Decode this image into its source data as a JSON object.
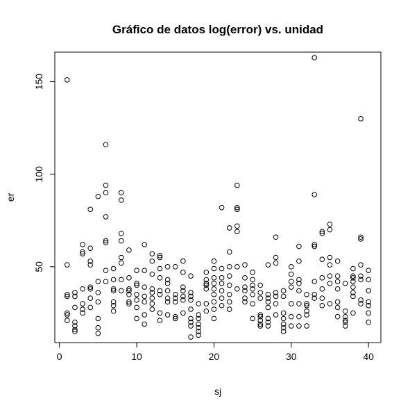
{
  "chart_data": {
    "type": "scatter",
    "title": "Gráfico de datos log(error) vs. unidad",
    "xlabel": "sj",
    "ylabel": "er",
    "xlim": [
      -0.6,
      41.6
    ],
    "ylim": [
      9,
      166
    ],
    "xticks": [
      0,
      10,
      20,
      30,
      40
    ],
    "yticks": [
      50,
      100,
      150
    ],
    "grid": false,
    "marker": "open-circle",
    "points": [
      [
        1,
        151
      ],
      [
        1,
        51
      ],
      [
        1,
        35
      ],
      [
        1,
        34
      ],
      [
        1,
        25
      ],
      [
        1,
        24
      ],
      [
        1,
        21
      ],
      [
        2,
        36
      ],
      [
        2,
        34
      ],
      [
        2,
        28
      ],
      [
        2,
        20
      ],
      [
        2,
        18
      ],
      [
        2,
        16
      ],
      [
        2,
        15
      ],
      [
        3,
        62
      ],
      [
        3,
        58
      ],
      [
        3,
        57
      ],
      [
        3,
        38
      ],
      [
        3,
        30
      ],
      [
        3,
        27
      ],
      [
        3,
        25
      ],
      [
        4,
        81
      ],
      [
        4,
        60
      ],
      [
        4,
        53
      ],
      [
        4,
        51
      ],
      [
        4,
        39
      ],
      [
        4,
        38
      ],
      [
        4,
        33
      ],
      [
        4,
        28
      ],
      [
        5,
        88
      ],
      [
        5,
        42
      ],
      [
        5,
        36
      ],
      [
        5,
        31
      ],
      [
        5,
        22
      ],
      [
        5,
        17
      ],
      [
        5,
        14
      ],
      [
        6,
        116
      ],
      [
        6,
        94
      ],
      [
        6,
        90
      ],
      [
        6,
        77
      ],
      [
        6,
        64
      ],
      [
        6,
        63
      ],
      [
        6,
        48
      ],
      [
        6,
        42
      ],
      [
        7,
        49
      ],
      [
        7,
        43
      ],
      [
        7,
        38
      ],
      [
        7,
        37
      ],
      [
        7,
        31
      ],
      [
        7,
        29
      ],
      [
        7,
        26
      ],
      [
        8,
        90
      ],
      [
        8,
        86
      ],
      [
        8,
        68
      ],
      [
        8,
        64
      ],
      [
        8,
        55
      ],
      [
        8,
        52
      ],
      [
        8,
        43
      ],
      [
        8,
        37
      ],
      [
        9,
        59
      ],
      [
        9,
        44
      ],
      [
        9,
        38
      ],
      [
        9,
        37
      ],
      [
        9,
        35
      ],
      [
        9,
        31
      ],
      [
        9,
        30
      ],
      [
        10,
        48
      ],
      [
        10,
        41
      ],
      [
        10,
        40
      ],
      [
        10,
        35
      ],
      [
        10,
        32
      ],
      [
        10,
        28
      ],
      [
        10,
        22
      ],
      [
        11,
        62
      ],
      [
        11,
        48
      ],
      [
        11,
        39
      ],
      [
        11,
        34
      ],
      [
        11,
        31
      ],
      [
        11,
        24
      ],
      [
        11,
        19
      ],
      [
        12,
        57
      ],
      [
        12,
        53
      ],
      [
        12,
        46
      ],
      [
        12,
        38
      ],
      [
        12,
        36
      ],
      [
        12,
        33
      ],
      [
        12,
        30
      ],
      [
        12,
        27
      ],
      [
        13,
        56
      ],
      [
        13,
        55
      ],
      [
        13,
        49
      ],
      [
        13,
        44
      ],
      [
        13,
        37
      ],
      [
        13,
        35
      ],
      [
        13,
        25
      ],
      [
        13,
        21
      ],
      [
        14,
        50
      ],
      [
        14,
        43
      ],
      [
        14,
        41
      ],
      [
        14,
        37
      ],
      [
        14,
        33
      ],
      [
        14,
        31
      ],
      [
        14,
        24
      ],
      [
        15,
        50
      ],
      [
        15,
        35
      ],
      [
        15,
        33
      ],
      [
        15,
        31
      ],
      [
        15,
        23
      ],
      [
        15,
        22
      ],
      [
        16,
        53
      ],
      [
        16,
        47
      ],
      [
        16,
        39
      ],
      [
        16,
        37
      ],
      [
        16,
        34
      ],
      [
        16,
        32
      ],
      [
        16,
        25
      ],
      [
        17,
        45
      ],
      [
        17,
        36
      ],
      [
        17,
        34
      ],
      [
        17,
        32
      ],
      [
        17,
        27
      ],
      [
        17,
        22
      ],
      [
        17,
        20
      ],
      [
        17,
        18
      ],
      [
        17,
        12
      ],
      [
        18,
        30
      ],
      [
        18,
        24
      ],
      [
        18,
        22
      ],
      [
        18,
        19
      ],
      [
        18,
        17
      ],
      [
        18,
        15
      ],
      [
        18,
        13
      ],
      [
        19,
        47
      ],
      [
        19,
        43
      ],
      [
        19,
        41
      ],
      [
        19,
        40
      ],
      [
        19,
        38
      ],
      [
        19,
        30
      ],
      [
        19,
        26
      ],
      [
        20,
        53
      ],
      [
        20,
        49
      ],
      [
        20,
        44
      ],
      [
        20,
        41
      ],
      [
        20,
        38
      ],
      [
        20,
        35
      ],
      [
        20,
        31
      ],
      [
        20,
        27
      ],
      [
        20,
        22
      ],
      [
        21,
        82
      ],
      [
        21,
        49
      ],
      [
        21,
        44
      ],
      [
        21,
        41
      ],
      [
        21,
        37
      ],
      [
        21,
        33
      ],
      [
        21,
        29
      ],
      [
        22,
        71
      ],
      [
        22,
        58
      ],
      [
        22,
        50
      ],
      [
        22,
        45
      ],
      [
        22,
        40
      ],
      [
        22,
        35
      ],
      [
        22,
        31
      ],
      [
        22,
        27
      ],
      [
        23,
        94
      ],
      [
        23,
        82
      ],
      [
        23,
        81
      ],
      [
        23,
        72
      ],
      [
        23,
        69
      ],
      [
        23,
        50
      ],
      [
        23,
        38
      ],
      [
        24,
        51
      ],
      [
        24,
        44
      ],
      [
        24,
        39
      ],
      [
        24,
        37
      ],
      [
        24,
        33
      ],
      [
        24,
        31
      ],
      [
        25,
        47
      ],
      [
        25,
        43
      ],
      [
        25,
        40
      ],
      [
        25,
        38
      ],
      [
        25,
        35
      ],
      [
        25,
        30
      ],
      [
        25,
        22
      ],
      [
        26,
        40
      ],
      [
        26,
        36
      ],
      [
        26,
        33
      ],
      [
        26,
        24
      ],
      [
        26,
        23
      ],
      [
        26,
        21
      ],
      [
        26,
        19
      ],
      [
        26,
        18
      ],
      [
        27,
        51
      ],
      [
        27,
        35
      ],
      [
        27,
        33
      ],
      [
        27,
        31
      ],
      [
        27,
        28
      ],
      [
        27,
        22
      ],
      [
        27,
        20
      ],
      [
        27,
        18
      ],
      [
        28,
        66
      ],
      [
        28,
        55
      ],
      [
        28,
        52
      ],
      [
        28,
        36
      ],
      [
        28,
        34
      ],
      [
        28,
        30
      ],
      [
        28,
        24
      ],
      [
        29,
        37
      ],
      [
        29,
        34
      ],
      [
        29,
        25
      ],
      [
        29,
        22
      ],
      [
        29,
        19
      ],
      [
        29,
        17
      ],
      [
        29,
        15
      ],
      [
        30,
        50
      ],
      [
        30,
        46
      ],
      [
        30,
        42
      ],
      [
        30,
        39
      ],
      [
        30,
        30
      ],
      [
        30,
        23
      ],
      [
        30,
        18
      ],
      [
        31,
        61
      ],
      [
        31,
        53
      ],
      [
        31,
        43
      ],
      [
        31,
        41
      ],
      [
        31,
        37
      ],
      [
        31,
        30
      ],
      [
        31,
        23
      ],
      [
        31,
        18
      ],
      [
        32,
        35
      ],
      [
        32,
        30
      ],
      [
        32,
        29
      ],
      [
        32,
        26
      ],
      [
        32,
        24
      ],
      [
        32,
        18
      ],
      [
        33,
        163
      ],
      [
        33,
        89
      ],
      [
        33,
        62
      ],
      [
        33,
        61
      ],
      [
        33,
        42
      ],
      [
        33,
        35
      ],
      [
        33,
        33
      ],
      [
        34,
        69
      ],
      [
        34,
        68
      ],
      [
        34,
        54
      ],
      [
        34,
        44
      ],
      [
        34,
        38
      ],
      [
        34,
        33
      ],
      [
        34,
        29
      ],
      [
        35,
        73
      ],
      [
        35,
        70
      ],
      [
        35,
        55
      ],
      [
        35,
        51
      ],
      [
        35,
        45
      ],
      [
        35,
        41
      ],
      [
        35,
        30
      ],
      [
        36,
        53
      ],
      [
        36,
        45
      ],
      [
        36,
        42
      ],
      [
        36,
        38
      ],
      [
        36,
        31
      ],
      [
        36,
        28
      ],
      [
        36,
        23
      ],
      [
        37,
        41
      ],
      [
        37,
        26
      ],
      [
        37,
        23
      ],
      [
        37,
        21
      ],
      [
        37,
        20
      ],
      [
        37,
        18
      ],
      [
        38,
        49
      ],
      [
        38,
        45
      ],
      [
        38,
        44
      ],
      [
        38,
        42
      ],
      [
        38,
        39
      ],
      [
        38,
        36
      ],
      [
        38,
        34
      ],
      [
        38,
        25
      ],
      [
        39,
        130
      ],
      [
        39,
        66
      ],
      [
        39,
        65
      ],
      [
        39,
        51
      ],
      [
        39,
        45
      ],
      [
        39,
        43
      ],
      [
        39,
        32
      ],
      [
        39,
        30
      ],
      [
        40,
        48
      ],
      [
        40,
        43
      ],
      [
        40,
        37
      ],
      [
        40,
        31
      ],
      [
        40,
        29
      ],
      [
        40,
        25
      ],
      [
        40,
        20
      ]
    ]
  }
}
